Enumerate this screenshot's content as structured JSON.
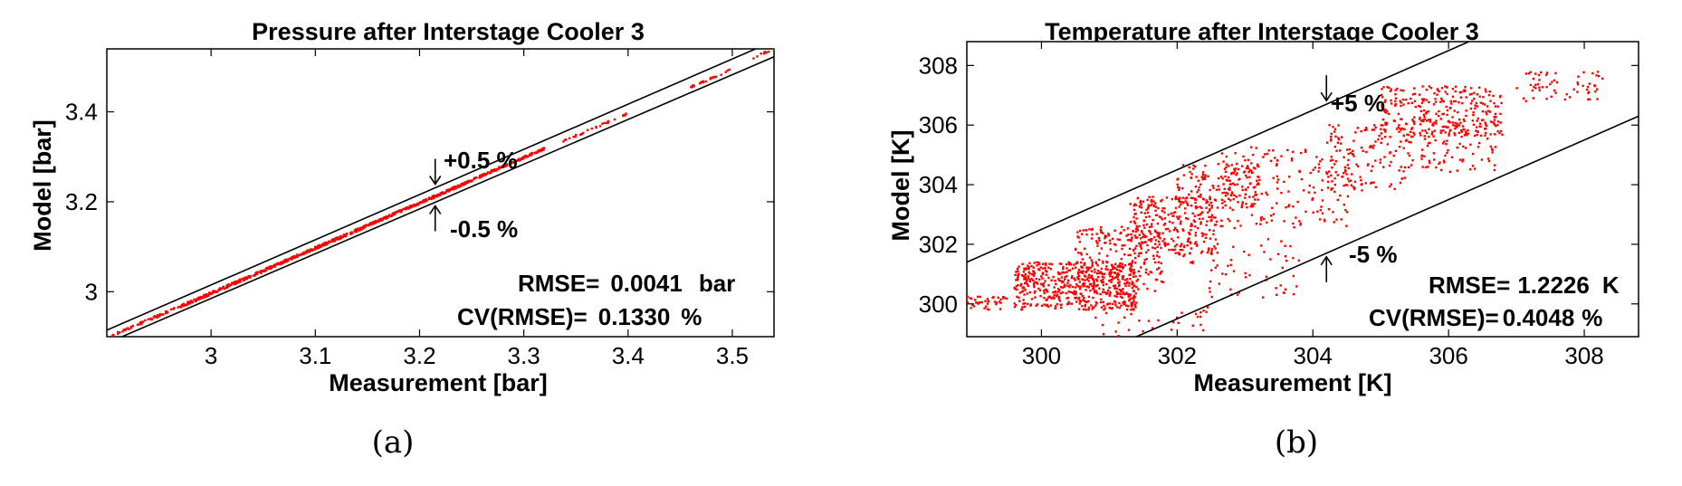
{
  "figure_colors": {
    "points": "#ff0000",
    "lines": "#000000"
  },
  "chart_data": [
    {
      "id": "a",
      "type": "scatter",
      "caption": "(a)",
      "title": "Pressure after Interstage Cooler 3",
      "xlabel": "Measurement [bar]",
      "ylabel": "Model [bar]",
      "xlim": [
        2.9,
        3.54
      ],
      "ylim": [
        2.9,
        3.54
      ],
      "xticks": [
        3,
        3.1,
        3.2,
        3.3,
        3.4,
        3.5
      ],
      "yticks": [
        3,
        3.2,
        3.4
      ],
      "xtick_labels": [
        "3",
        "3.1",
        "3.2",
        "3.3",
        "3.4",
        "3.5"
      ],
      "ytick_labels": [
        "3",
        "3.2",
        "3.4"
      ],
      "bands": [
        {
          "label": "+0.5 %",
          "factor": 1.005,
          "arrow": "down",
          "arrow_x": 3.215
        },
        {
          "label": "-0.5 %",
          "factor": 0.995,
          "arrow": "up",
          "arrow_x": 3.215
        }
      ],
      "stats": [
        {
          "label": "RMSE=",
          "value": "0.0041",
          "unit": "bar"
        },
        {
          "label": "CV(RMSE)=",
          "value": "0.1330",
          "unit": "%"
        }
      ],
      "series": [
        {
          "color": "#ff0000",
          "clusters": [
            {
              "x": [
                2.905,
                2.97
              ],
              "rel_offset": -0.001,
              "spread": 0.0018,
              "n": 60
            },
            {
              "x": [
                2.97,
                3.05
              ],
              "rel_offset": -0.0012,
              "spread": 0.002,
              "n": 160
            },
            {
              "x": [
                3.05,
                3.15
              ],
              "rel_offset": -0.001,
              "spread": 0.0018,
              "n": 260
            },
            {
              "x": [
                3.15,
                3.25
              ],
              "rel_offset": -0.0008,
              "spread": 0.0016,
              "n": 240
            },
            {
              "x": [
                3.25,
                3.32
              ],
              "rel_offset": -0.0005,
              "spread": 0.0014,
              "n": 120
            },
            {
              "x": [
                3.33,
                3.4
              ],
              "rel_offset": -0.001,
              "spread": 0.0012,
              "n": 30
            },
            {
              "x": [
                3.46,
                3.5
              ],
              "rel_offset": -0.0015,
              "spread": 0.0012,
              "n": 25
            },
            {
              "x": [
                3.52,
                3.54
              ],
              "rel_offset": 0.0,
              "spread": 0.0012,
              "n": 12
            }
          ]
        }
      ]
    },
    {
      "id": "b",
      "type": "scatter",
      "caption": "(b)",
      "title": "Temperature after Interstage Cooler 3",
      "xlabel": "Measurement [K]",
      "ylabel": "Model [K]",
      "xlim": [
        298.9,
        308.8
      ],
      "ylim": [
        298.9,
        308.8
      ],
      "xticks": [
        300,
        302,
        304,
        306,
        308
      ],
      "yticks": [
        300,
        302,
        304,
        306,
        308
      ],
      "xtick_labels": [
        "300",
        "302",
        "304",
        "306",
        "308"
      ],
      "ytick_labels": [
        "300",
        "302",
        "304",
        "306",
        "308"
      ],
      "bands": [
        {
          "label": "+5 %",
          "offset": 2.5,
          "arrow": "down",
          "arrow_x": 304.2
        },
        {
          "label": "-5 %",
          "offset": -2.5,
          "arrow": "up",
          "arrow_x": 304.2
        }
      ],
      "stats": [
        {
          "label": "RMSE=",
          "value": "1.2226",
          "unit": "K"
        },
        {
          "label": "CV(RMSE)=",
          "value": "0.4048",
          "unit": "%"
        }
      ],
      "series": [
        {
          "color": "#ff0000",
          "clusters": [
            {
              "x": [
                298.9,
                299.5
              ],
              "y": [
                299.8,
                300.3
              ],
              "n": 40
            },
            {
              "x": [
                299.6,
                301.4
              ],
              "y": [
                299.8,
                301.4
              ],
              "n": 520
            },
            {
              "x": [
                300.5,
                301.8
              ],
              "y": [
                300.3,
                302.6
              ],
              "n": 200
            },
            {
              "x": [
                301.3,
                302.6
              ],
              "y": [
                301.6,
                303.6
              ],
              "n": 280
            },
            {
              "x": [
                302.0,
                303.2
              ],
              "y": [
                303.2,
                304.7
              ],
              "n": 150
            },
            {
              "x": [
                302.2,
                303.8
              ],
              "y": [
                300.2,
                302.6
              ],
              "n": 60
            },
            {
              "x": [
                302.6,
                304.6
              ],
              "y": [
                302.6,
                305.3
              ],
              "n": 180
            },
            {
              "x": [
                304.2,
                305.5
              ],
              "y": [
                303.8,
                306.0
              ],
              "n": 130
            },
            {
              "x": [
                305.0,
                306.8
              ],
              "y": [
                305.6,
                307.3
              ],
              "n": 280
            },
            {
              "x": [
                305.6,
                306.7
              ],
              "y": [
                304.4,
                306.2
              ],
              "n": 90
            },
            {
              "x": [
                307.0,
                308.3
              ],
              "y": [
                306.8,
                307.8
              ],
              "n": 60
            },
            {
              "x": [
                300.5,
                302.5
              ],
              "y": [
                298.9,
                299.9
              ],
              "n": 30
            }
          ]
        }
      ]
    }
  ]
}
